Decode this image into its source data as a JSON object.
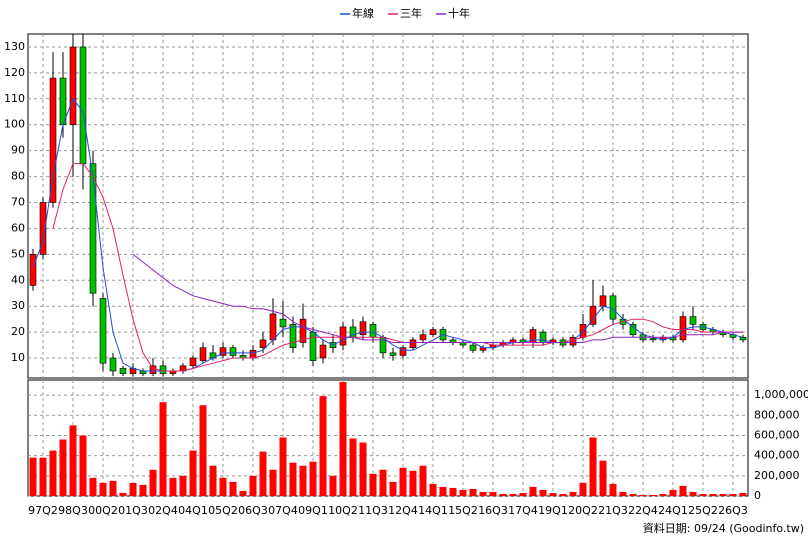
{
  "chart_data": {
    "type": "candlestick",
    "categories": [
      null,
      "97Q2",
      null,
      null,
      "98Q3",
      null,
      null,
      "00Q2",
      null,
      null,
      "01Q3",
      null,
      null,
      "02Q4",
      null,
      null,
      "04Q1",
      null,
      null,
      "05Q2",
      null,
      null,
      "06Q3",
      null,
      null,
      "07Q4",
      null,
      null,
      "09Q1",
      null,
      null,
      "10Q2",
      null,
      null,
      "11Q3",
      null,
      null,
      "12Q4",
      null,
      null,
      "14Q1",
      null,
      null,
      "15Q2",
      null,
      null,
      "16Q3",
      null,
      null,
      "17Q4",
      null,
      null,
      "19Q1",
      null,
      null,
      "20Q2",
      null,
      null,
      "21Q3",
      null,
      null,
      "22Q4",
      null,
      null,
      "24Q1",
      null,
      null,
      "25Q2",
      null,
      null,
      "26Q3",
      null
    ],
    "open": [
      38,
      50,
      70,
      118,
      100,
      130,
      85,
      33,
      10,
      6,
      4,
      5,
      4,
      7,
      4,
      5,
      7,
      9,
      12,
      11,
      14,
      11,
      10,
      14,
      17,
      25,
      23,
      16,
      20,
      10,
      16,
      15,
      22,
      19,
      23,
      18,
      12,
      11,
      14,
      17,
      19,
      21,
      17,
      16,
      15,
      13,
      14,
      15,
      16,
      17,
      16,
      20,
      16,
      17,
      15,
      18,
      23,
      30,
      34,
      25,
      23,
      19,
      17.5,
      17,
      18,
      17,
      26,
      23,
      21,
      20,
      19,
      18
    ],
    "close": [
      50,
      70,
      118,
      100,
      130,
      85,
      35,
      8,
      5,
      4,
      6,
      4,
      7,
      4,
      5,
      7,
      10,
      14,
      10,
      14,
      11,
      10,
      13,
      17,
      27,
      22,
      14,
      25,
      9,
      15,
      14,
      22,
      18,
      24,
      18,
      12,
      11,
      14,
      17,
      19,
      21,
      17,
      16,
      15,
      13,
      14,
      15,
      16,
      17,
      16,
      21,
      16,
      17,
      15,
      18,
      23,
      30,
      34,
      25,
      23,
      19,
      17,
      17,
      18,
      17,
      26,
      23,
      21,
      20,
      19,
      18,
      17
    ],
    "high": [
      52,
      72,
      128,
      128,
      135,
      135,
      90,
      35,
      12,
      7,
      8,
      6,
      10,
      9,
      6,
      8,
      11,
      16,
      15,
      16,
      15,
      13,
      15,
      20,
      33,
      32,
      26,
      31,
      22,
      17,
      19,
      24,
      25,
      26,
      24,
      19,
      14,
      15,
      18,
      21,
      22,
      22,
      18,
      17,
      16,
      15,
      16,
      17,
      18,
      18,
      22,
      21,
      18,
      18,
      19,
      27,
      40,
      38,
      35,
      27,
      24,
      20,
      19,
      19,
      19,
      28,
      30,
      24,
      22,
      21,
      20,
      19
    ],
    "low": [
      36,
      48,
      68,
      95,
      80,
      75,
      30,
      5,
      3,
      3,
      3,
      3,
      3,
      3,
      3,
      4,
      6,
      8,
      9,
      10,
      10,
      9,
      9,
      12,
      15,
      18,
      12,
      14,
      7,
      8,
      12,
      13,
      16,
      17,
      16,
      10,
      9,
      10,
      13,
      16,
      18,
      16,
      15,
      14,
      12,
      12,
      13,
      14,
      15,
      15,
      14,
      15,
      15,
      14,
      14,
      17,
      22,
      28,
      23,
      21,
      18,
      16,
      16,
      16,
      16,
      16,
      21,
      20,
      19,
      18,
      17,
      16
    ],
    "volume": [
      380000,
      380000,
      450000,
      560000,
      700000,
      600000,
      180000,
      130000,
      150000,
      30000,
      130000,
      110000,
      260000,
      930000,
      180000,
      200000,
      450000,
      900000,
      300000,
      180000,
      140000,
      50000,
      200000,
      440000,
      260000,
      580000,
      330000,
      300000,
      340000,
      990000,
      200000,
      1130000,
      570000,
      530000,
      220000,
      260000,
      140000,
      280000,
      250000,
      300000,
      120000,
      90000,
      80000,
      60000,
      70000,
      40000,
      40000,
      20000,
      20000,
      30000,
      90000,
      60000,
      30000,
      20000,
      40000,
      130000,
      580000,
      350000,
      120000,
      40000,
      20000,
      10000,
      10000,
      20000,
      60000,
      100000,
      40000,
      20000,
      20000,
      20000,
      20000,
      30000
    ],
    "series": [
      {
        "name": "年線",
        "color": "#1f4fd8",
        "values": [
          45,
          55,
          80,
          100,
          110,
          105,
          80,
          45,
          20,
          8,
          6,
          5,
          5,
          5,
          5,
          5,
          6,
          8,
          10,
          12,
          12,
          12,
          12,
          13,
          17,
          21,
          22,
          22,
          20,
          17,
          15,
          17,
          19,
          20,
          20,
          18,
          15,
          13,
          13,
          15,
          17,
          19,
          18,
          17,
          16,
          14,
          14,
          15,
          16,
          16,
          17,
          17,
          16,
          16,
          17,
          20,
          25,
          30,
          29,
          25,
          22,
          19,
          18,
          17,
          18,
          21,
          22,
          22,
          21,
          20,
          19,
          18
        ]
      },
      {
        "name": "三年",
        "color": "#e0206a",
        "values": [
          null,
          null,
          60,
          75,
          85,
          85,
          80,
          72,
          60,
          42,
          25,
          12,
          6,
          5,
          5,
          5,
          6,
          7,
          8,
          9,
          10,
          10,
          10,
          11,
          13,
          15,
          16,
          17,
          18,
          18,
          18,
          18,
          18,
          18,
          18,
          18,
          17,
          16,
          16,
          16,
          16,
          16,
          16,
          16,
          16,
          16,
          15,
          15,
          15,
          15,
          15,
          15,
          16,
          16,
          17,
          18,
          19,
          21,
          23,
          24,
          25,
          25,
          24,
          22,
          21,
          21,
          21,
          20,
          20,
          20,
          20,
          20
        ]
      },
      {
        "name": "十年",
        "color": "#9020c0",
        "values": [
          null,
          null,
          null,
          null,
          null,
          null,
          null,
          null,
          null,
          null,
          50,
          47,
          44,
          41,
          38,
          36,
          34,
          33,
          32,
          31,
          30,
          30,
          29,
          29,
          28,
          27,
          24,
          22,
          21,
          20,
          19,
          18,
          18,
          17,
          17,
          17,
          16,
          16,
          16,
          16,
          16,
          16,
          16,
          16,
          16,
          16,
          16,
          16,
          16,
          16,
          16,
          16,
          16,
          16,
          16,
          16,
          17,
          17,
          18,
          18,
          18,
          18,
          18,
          18,
          18,
          19,
          19,
          19,
          19,
          20,
          20,
          20
        ]
      }
    ],
    "up_color": "#ff0000",
    "down_color": "#00c000",
    "ylim": [
      2.3,
      135
    ],
    "yticks": [
      10,
      20,
      30,
      40,
      50,
      60,
      70,
      80,
      90,
      100,
      110,
      120,
      130
    ],
    "volume_ylim": [
      0,
      1150000
    ],
    "volume_yticks": [
      0,
      {
        "value": 200000,
        "label": "200,000"
      },
      {
        "value": 400000,
        "label": "400,000"
      },
      {
        "value": 600000,
        "label": "600,000"
      },
      {
        "value": 800000,
        "label": "800,000"
      },
      {
        "value": 1000000,
        "label": "1,000,000"
      }
    ],
    "volume_color": "#ff0000",
    "grid": true,
    "note": "資料日期: 09/24 (Goodinfo.tw)"
  }
}
